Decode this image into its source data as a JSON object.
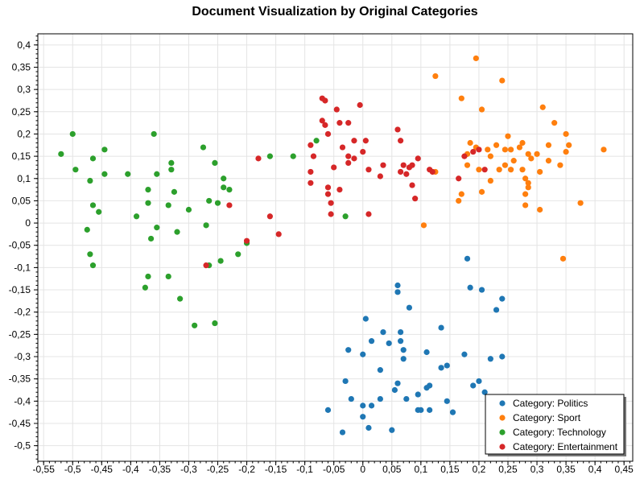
{
  "chart_data": {
    "type": "scatter",
    "title": "Document Visualization by Original Categories",
    "xlabel": "",
    "ylabel": "",
    "xlim": [
      -0.56,
      0.465
    ],
    "ylim": [
      -0.535,
      0.425
    ],
    "grid": true,
    "legend_position": "bottom-right",
    "x_ticks": [
      -0.55,
      -0.5,
      -0.45,
      -0.4,
      -0.35,
      -0.3,
      -0.25,
      -0.2,
      -0.15,
      -0.1,
      -0.05,
      0,
      0.05,
      0.1,
      0.15,
      0.2,
      0.25,
      0.3,
      0.35,
      0.4,
      0.45
    ],
    "x_tick_labels": [
      "-0,55",
      "-0,5",
      "-0,45",
      "-0,4",
      "-0,35",
      "-0,3",
      "-0,25",
      "-0,2",
      "-0,15",
      "-0,1",
      "-0,05",
      "0",
      "0,05",
      "0,1",
      "0,15",
      "0,2",
      "0,25",
      "0,3",
      "0,35",
      "0,4",
      "0,45"
    ],
    "y_ticks": [
      0.4,
      0.35,
      0.3,
      0.25,
      0.2,
      0.15,
      0.1,
      0.05,
      0,
      -0.05,
      -0.1,
      -0.15,
      -0.2,
      -0.25,
      -0.3,
      -0.35,
      -0.4,
      -0.45,
      -0.5
    ],
    "y_tick_labels": [
      "0,4",
      "0,35",
      "0,3",
      "0,25",
      "0,2",
      "0,15",
      "0,1",
      "0,05",
      "0",
      "-0,05",
      "-0,1",
      "-0,15",
      "-0,2",
      "-0,25",
      "-0,3",
      "-0,35",
      "-0,4",
      "-0,45",
      "-0,5"
    ],
    "series": [
      {
        "name": "Category: Politics",
        "color": "#1f77b4",
        "points": [
          [
            0.18,
            -0.08
          ],
          [
            0.06,
            -0.14
          ],
          [
            0.06,
            -0.155
          ],
          [
            0.08,
            -0.19
          ],
          [
            0.185,
            -0.145
          ],
          [
            0.205,
            -0.15
          ],
          [
            0.24,
            -0.17
          ],
          [
            0.23,
            -0.195
          ],
          [
            0.005,
            -0.215
          ],
          [
            0.035,
            -0.245
          ],
          [
            0.065,
            -0.245
          ],
          [
            0.135,
            -0.235
          ],
          [
            -0.025,
            -0.285
          ],
          [
            0.015,
            -0.265
          ],
          [
            0.045,
            -0.27
          ],
          [
            0.07,
            -0.285
          ],
          [
            0.065,
            -0.265
          ],
          [
            0.11,
            -0.29
          ],
          [
            0.175,
            -0.295
          ],
          [
            0.22,
            -0.305
          ],
          [
            0.24,
            -0.3
          ],
          [
            0.0,
            -0.295
          ],
          [
            0.07,
            -0.305
          ],
          [
            0.03,
            -0.33
          ],
          [
            0.135,
            -0.325
          ],
          [
            0.145,
            -0.32
          ],
          [
            -0.03,
            -0.355
          ],
          [
            0.06,
            -0.36
          ],
          [
            0.115,
            -0.365
          ],
          [
            0.11,
            -0.37
          ],
          [
            0.19,
            -0.365
          ],
          [
            0.2,
            -0.355
          ],
          [
            0.055,
            -0.375
          ],
          [
            0.095,
            -0.385
          ],
          [
            0.21,
            -0.38
          ],
          [
            -0.02,
            -0.395
          ],
          [
            0.03,
            -0.395
          ],
          [
            0.075,
            -0.395
          ],
          [
            0.145,
            -0.4
          ],
          [
            0.0,
            -0.41
          ],
          [
            0.015,
            -0.41
          ],
          [
            -0.06,
            -0.42
          ],
          [
            0.1,
            -0.42
          ],
          [
            0.095,
            -0.42
          ],
          [
            0.115,
            -0.42
          ],
          [
            0.155,
            -0.425
          ],
          [
            0.0,
            -0.435
          ],
          [
            0.01,
            -0.46
          ],
          [
            0.05,
            -0.465
          ],
          [
            -0.035,
            -0.47
          ]
        ]
      },
      {
        "name": "Category: Sport",
        "color": "#ff7f0e",
        "points": [
          [
            0.195,
            0.37
          ],
          [
            0.24,
            0.32
          ],
          [
            0.125,
            0.33
          ],
          [
            0.17,
            0.28
          ],
          [
            0.205,
            0.255
          ],
          [
            0.31,
            0.26
          ],
          [
            0.33,
            0.225
          ],
          [
            0.35,
            0.2
          ],
          [
            0.25,
            0.195
          ],
          [
            0.275,
            0.18
          ],
          [
            0.32,
            0.175
          ],
          [
            0.355,
            0.175
          ],
          [
            0.185,
            0.18
          ],
          [
            0.195,
            0.17
          ],
          [
            0.215,
            0.165
          ],
          [
            0.245,
            0.165
          ],
          [
            0.255,
            0.165
          ],
          [
            0.285,
            0.155
          ],
          [
            0.3,
            0.155
          ],
          [
            0.35,
            0.16
          ],
          [
            0.415,
            0.165
          ],
          [
            0.18,
            0.155
          ],
          [
            0.22,
            0.15
          ],
          [
            0.29,
            0.145
          ],
          [
            0.245,
            0.13
          ],
          [
            0.18,
            0.13
          ],
          [
            0.235,
            0.12
          ],
          [
            0.255,
            0.12
          ],
          [
            0.275,
            0.12
          ],
          [
            0.34,
            0.13
          ],
          [
            0.125,
            0.115
          ],
          [
            0.2,
            0.12
          ],
          [
            0.22,
            0.095
          ],
          [
            0.28,
            0.1
          ],
          [
            0.285,
            0.08
          ],
          [
            0.28,
            0.065
          ],
          [
            0.205,
            0.07
          ],
          [
            0.17,
            0.065
          ],
          [
            0.165,
            0.05
          ],
          [
            0.28,
            0.04
          ],
          [
            0.305,
            0.03
          ],
          [
            0.375,
            0.045
          ],
          [
            0.105,
            -0.005
          ],
          [
            0.345,
            -0.08
          ],
          [
            0.285,
            0.09
          ],
          [
            0.305,
            0.115
          ],
          [
            0.32,
            0.14
          ],
          [
            0.27,
            0.17
          ],
          [
            0.23,
            0.175
          ],
          [
            0.26,
            0.14
          ]
        ]
      },
      {
        "name": "Category: Technology",
        "color": "#2ca02c",
        "points": [
          [
            -0.5,
            0.2
          ],
          [
            -0.36,
            0.2
          ],
          [
            -0.52,
            0.155
          ],
          [
            -0.445,
            0.165
          ],
          [
            -0.275,
            0.17
          ],
          [
            -0.465,
            0.145
          ],
          [
            -0.33,
            0.135
          ],
          [
            -0.255,
            0.135
          ],
          [
            -0.495,
            0.12
          ],
          [
            -0.445,
            0.11
          ],
          [
            -0.405,
            0.11
          ],
          [
            -0.355,
            0.11
          ],
          [
            -0.33,
            0.12
          ],
          [
            -0.16,
            0.15
          ],
          [
            -0.12,
            0.15
          ],
          [
            -0.08,
            0.185
          ],
          [
            -0.47,
            0.095
          ],
          [
            -0.24,
            0.1
          ],
          [
            -0.37,
            0.075
          ],
          [
            -0.325,
            0.07
          ],
          [
            -0.24,
            0.08
          ],
          [
            -0.23,
            0.075
          ],
          [
            -0.265,
            0.05
          ],
          [
            -0.37,
            0.045
          ],
          [
            -0.335,
            0.04
          ],
          [
            -0.3,
            0.03
          ],
          [
            -0.25,
            0.045
          ],
          [
            -0.465,
            0.04
          ],
          [
            -0.455,
            0.025
          ],
          [
            -0.39,
            0.015
          ],
          [
            -0.03,
            0.015
          ],
          [
            -0.475,
            -0.015
          ],
          [
            -0.355,
            -0.01
          ],
          [
            -0.32,
            -0.02
          ],
          [
            -0.27,
            -0.005
          ],
          [
            -0.365,
            -0.035
          ],
          [
            -0.2,
            -0.045
          ],
          [
            -0.47,
            -0.07
          ],
          [
            -0.215,
            -0.07
          ],
          [
            -0.245,
            -0.085
          ],
          [
            -0.465,
            -0.095
          ],
          [
            -0.265,
            -0.095
          ],
          [
            -0.37,
            -0.12
          ],
          [
            -0.335,
            -0.12
          ],
          [
            -0.375,
            -0.145
          ],
          [
            -0.315,
            -0.17
          ],
          [
            -0.29,
            -0.23
          ],
          [
            -0.255,
            -0.225
          ]
        ]
      },
      {
        "name": "Category: Entertainment",
        "color": "#d62728",
        "points": [
          [
            -0.07,
            0.28
          ],
          [
            -0.065,
            0.275
          ],
          [
            -0.005,
            0.265
          ],
          [
            -0.045,
            0.255
          ],
          [
            -0.07,
            0.23
          ],
          [
            -0.065,
            0.22
          ],
          [
            -0.04,
            0.225
          ],
          [
            -0.025,
            0.225
          ],
          [
            0.06,
            0.21
          ],
          [
            -0.06,
            0.2
          ],
          [
            -0.015,
            0.185
          ],
          [
            0.005,
            0.185
          ],
          [
            0.065,
            0.185
          ],
          [
            -0.09,
            0.175
          ],
          [
            -0.035,
            0.17
          ],
          [
            0.0,
            0.16
          ],
          [
            -0.085,
            0.15
          ],
          [
            -0.025,
            0.15
          ],
          [
            -0.015,
            0.145
          ],
          [
            -0.025,
            0.135
          ],
          [
            -0.05,
            0.125
          ],
          [
            0.035,
            0.13
          ],
          [
            0.07,
            0.13
          ],
          [
            0.095,
            0.145
          ],
          [
            0.08,
            0.125
          ],
          [
            0.085,
            0.13
          ],
          [
            -0.09,
            0.115
          ],
          [
            0.01,
            0.12
          ],
          [
            0.065,
            0.115
          ],
          [
            0.115,
            0.12
          ],
          [
            0.03,
            0.105
          ],
          [
            0.075,
            0.11
          ],
          [
            0.12,
            0.115
          ],
          [
            0.19,
            0.16
          ],
          [
            0.2,
            0.165
          ],
          [
            0.175,
            0.15
          ],
          [
            0.21,
            0.12
          ],
          [
            0.165,
            0.1
          ],
          [
            -0.09,
            0.09
          ],
          [
            -0.06,
            0.08
          ],
          [
            -0.04,
            0.075
          ],
          [
            -0.06,
            0.065
          ],
          [
            -0.055,
            0.045
          ],
          [
            0.085,
            0.085
          ],
          [
            0.09,
            0.055
          ],
          [
            -0.18,
            0.145
          ],
          [
            -0.23,
            0.04
          ],
          [
            -0.16,
            0.015
          ],
          [
            -0.055,
            0.02
          ],
          [
            0.01,
            0.02
          ],
          [
            -0.2,
            -0.04
          ],
          [
            -0.145,
            -0.025
          ],
          [
            -0.27,
            -0.095
          ]
        ]
      }
    ]
  }
}
